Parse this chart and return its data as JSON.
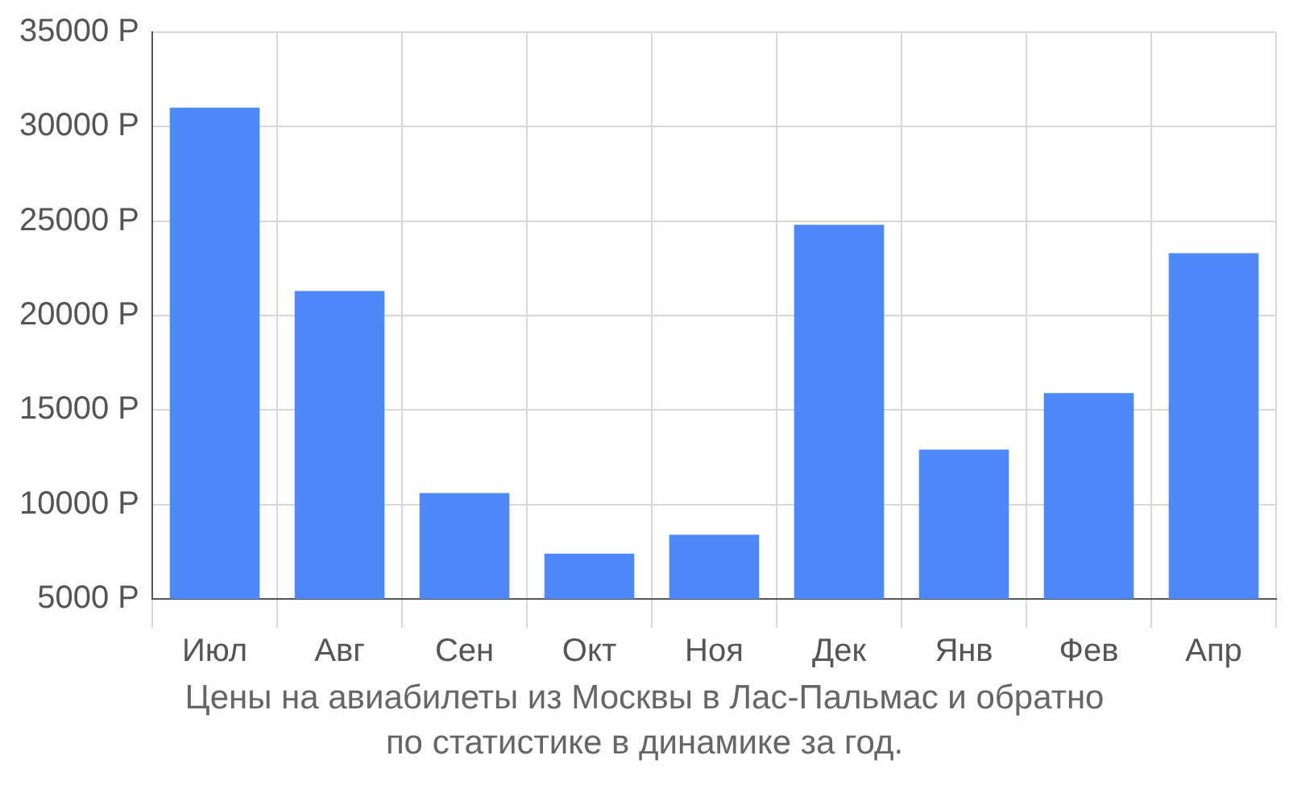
{
  "chart_data": {
    "type": "bar",
    "title": "Цены на авиабилеты из Москвы в Лас-Пальмас и обратно",
    "subtitle": "по статистике в динамике за год.",
    "categories": [
      "Июл",
      "Авг",
      "Сен",
      "Окт",
      "Ноя",
      "Дек",
      "Янв",
      "Фев",
      "Апр"
    ],
    "values": [
      31000,
      21300,
      10600,
      7400,
      8400,
      24800,
      12900,
      15900,
      23300
    ],
    "color": "#4d89f9",
    "ylim": [
      5000,
      35000
    ],
    "yticks": [
      {
        "value": 5000,
        "label": "5000 Р"
      },
      {
        "value": 10000,
        "label": "10000 Р"
      },
      {
        "value": 15000,
        "label": "15000 Р"
      },
      {
        "value": 20000,
        "label": "20000 Р"
      },
      {
        "value": 25000,
        "label": "25000 Р"
      },
      {
        "value": 30000,
        "label": "30000 Р"
      },
      {
        "value": 35000,
        "label": "35000 Р"
      }
    ],
    "grid": true,
    "legend": false
  }
}
